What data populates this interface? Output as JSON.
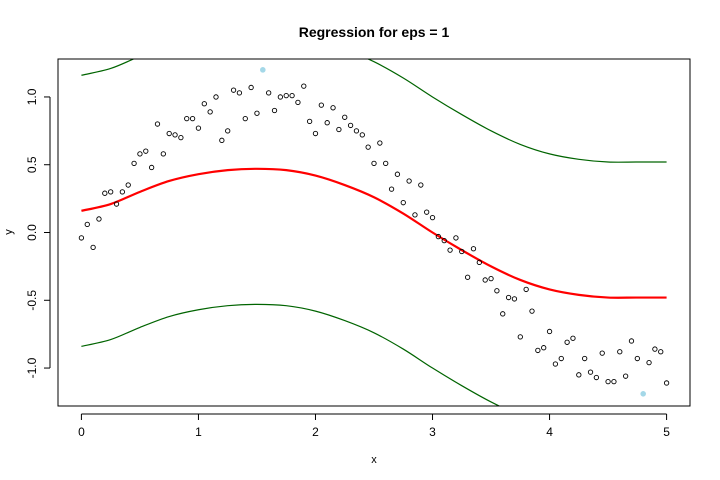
{
  "chart_data": {
    "type": "scatter",
    "title": "Regression for eps = 1",
    "xlabel": "x",
    "ylabel": "y",
    "xlim": [
      -0.2,
      5.2
    ],
    "ylim": [
      -1.28,
      1.28
    ],
    "grid": false,
    "legend": "none",
    "x_ticks": [
      0,
      1,
      2,
      3,
      4,
      5
    ],
    "y_ticks": [
      -1.0,
      -0.5,
      0.0,
      0.5,
      1.0
    ],
    "x_tick_labels": [
      "0",
      "1",
      "2",
      "3",
      "4",
      "5"
    ],
    "y_tick_labels": [
      "-1.0",
      "-0.5",
      "0.0",
      "0.5",
      "1.0"
    ],
    "colors": {
      "points": "#000000",
      "outlier_points": "#a4d8e8",
      "regression_line": "#ff0000",
      "band_lines": "#006400",
      "axes": "#000000"
    },
    "points": {
      "x": [
        0.0,
        0.05,
        0.1,
        0.15,
        0.2,
        0.25,
        0.3,
        0.35,
        0.4,
        0.45,
        0.5,
        0.55,
        0.6,
        0.65,
        0.7,
        0.75,
        0.8,
        0.85,
        0.9,
        0.95,
        1.0,
        1.05,
        1.1,
        1.15,
        1.2,
        1.25,
        1.3,
        1.35,
        1.4,
        1.45,
        1.5,
        1.6,
        1.65,
        1.7,
        1.75,
        1.8,
        1.85,
        1.9,
        1.95,
        2.0,
        2.05,
        2.1,
        2.15,
        2.2,
        2.25,
        2.3,
        2.35,
        2.4,
        2.45,
        2.5,
        2.55,
        2.6,
        2.65,
        2.7,
        2.75,
        2.8,
        2.85,
        2.9,
        2.95,
        3.0,
        3.05,
        3.1,
        3.15,
        3.2,
        3.25,
        3.3,
        3.35,
        3.4,
        3.45,
        3.5,
        3.55,
        3.6,
        3.65,
        3.7,
        3.75,
        3.8,
        3.85,
        3.9,
        3.95,
        4.0,
        4.05,
        4.1,
        4.15,
        4.2,
        4.25,
        4.3,
        4.35,
        4.4,
        4.45,
        4.5,
        4.55,
        4.6,
        4.65,
        4.7,
        4.75,
        4.85,
        4.9,
        4.95,
        5.0
      ],
      "y": [
        -0.04,
        0.06,
        -0.11,
        0.1,
        0.29,
        0.3,
        0.21,
        0.3,
        0.35,
        0.51,
        0.58,
        0.6,
        0.48,
        0.8,
        0.58,
        0.73,
        0.72,
        0.7,
        0.84,
        0.84,
        0.77,
        0.95,
        0.89,
        1.0,
        0.68,
        0.75,
        1.05,
        1.03,
        0.84,
        1.07,
        0.88,
        1.03,
        0.9,
        1.0,
        1.01,
        1.01,
        0.96,
        1.08,
        0.82,
        0.73,
        0.94,
        0.81,
        0.92,
        0.76,
        0.85,
        0.79,
        0.75,
        0.72,
        0.63,
        0.51,
        0.66,
        0.51,
        0.32,
        0.43,
        0.22,
        0.38,
        0.13,
        0.35,
        0.15,
        0.11,
        -0.03,
        -0.06,
        -0.13,
        -0.04,
        -0.14,
        -0.33,
        -0.12,
        -0.22,
        -0.35,
        -0.34,
        -0.43,
        -0.6,
        -0.48,
        -0.49,
        -0.77,
        -0.42,
        -0.58,
        -0.87,
        -0.85,
        -0.73,
        -0.97,
        -0.93,
        -0.81,
        -0.78,
        -1.05,
        -0.93,
        -1.03,
        -1.07,
        -0.89,
        -1.1,
        -1.1,
        -0.88,
        -1.06,
        -0.8,
        -0.93,
        -0.96,
        -0.86,
        -0.88,
        -1.11
      ]
    },
    "outlier_points": {
      "x": [
        1.55,
        4.8
      ],
      "y": [
        1.2,
        -1.19
      ]
    },
    "series": [
      {
        "x": [
          0.0,
          0.25,
          0.5,
          0.75,
          1.0,
          1.25,
          1.5,
          1.75,
          2.0,
          2.25,
          2.5,
          2.75,
          3.0,
          3.25,
          3.5,
          3.75,
          4.0,
          4.25,
          4.5,
          4.75,
          5.0
        ],
        "values": [
          0.16,
          0.21,
          0.3,
          0.38,
          0.43,
          0.46,
          0.47,
          0.46,
          0.42,
          0.35,
          0.26,
          0.14,
          0.0,
          -0.13,
          -0.25,
          -0.35,
          -0.42,
          -0.46,
          -0.48,
          -0.48,
          -0.48
        ]
      },
      {
        "x": [
          0.0,
          0.25,
          0.5,
          0.75,
          1.0,
          1.25,
          1.5,
          1.75,
          2.0,
          2.25,
          2.5,
          2.75,
          3.0,
          3.25,
          3.5,
          3.75,
          4.0,
          4.25,
          4.5,
          4.75,
          5.0
        ],
        "values": [
          1.16,
          1.21,
          1.3,
          1.38,
          1.43,
          1.46,
          1.47,
          1.46,
          1.42,
          1.35,
          1.26,
          1.14,
          1.0,
          0.87,
          0.75,
          0.65,
          0.58,
          0.54,
          0.52,
          0.52,
          0.52
        ]
      },
      {
        "x": [
          0.0,
          0.25,
          0.5,
          0.75,
          1.0,
          1.25,
          1.5,
          1.75,
          2.0,
          2.25,
          2.5,
          2.75,
          3.0,
          3.25,
          3.5,
          3.75,
          4.0,
          4.25,
          4.5,
          4.75,
          5.0
        ],
        "values": [
          -0.84,
          -0.79,
          -0.7,
          -0.62,
          -0.57,
          -0.54,
          -0.53,
          -0.54,
          -0.58,
          -0.65,
          -0.74,
          -0.86,
          -1.0,
          -1.13,
          -1.25,
          -1.35,
          -1.42,
          -1.46,
          -1.48,
          -1.48,
          -1.48
        ]
      }
    ]
  }
}
